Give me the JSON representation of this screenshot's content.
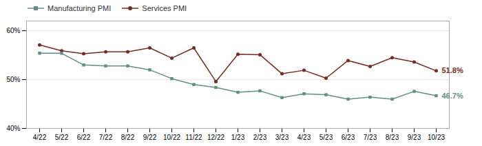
{
  "chart_data": {
    "type": "line",
    "categories": [
      "4/22",
      "5/22",
      "6/22",
      "7/22",
      "8/22",
      "9/22",
      "10/22",
      "11/22",
      "12/22",
      "1/23",
      "2/23",
      "3/23",
      "4/23",
      "5/23",
      "6/23",
      "7/23",
      "8/23",
      "9/23",
      "10/23"
    ],
    "series": [
      {
        "name": "Manufacturing PMI",
        "color": "#5f8f8a",
        "marker": "square",
        "values": [
          55.4,
          55.4,
          53.0,
          52.8,
          52.8,
          52.0,
          50.2,
          49.0,
          48.4,
          47.4,
          47.7,
          46.3,
          47.1,
          46.9,
          46.0,
          46.4,
          46.0,
          47.6,
          46.7
        ]
      },
      {
        "name": "Services PMI",
        "color": "#7b2a1e",
        "marker": "circle",
        "values": [
          57.1,
          55.9,
          55.3,
          55.7,
          55.7,
          56.5,
          54.4,
          56.5,
          49.6,
          55.2,
          55.1,
          51.2,
          51.9,
          50.3,
          53.9,
          52.7,
          54.5,
          53.6,
          51.8
        ]
      }
    ],
    "annotations": [
      {
        "text": "51.8%",
        "series": "Services PMI"
      },
      {
        "text": "46.7%",
        "series": "Manufacturing PMI"
      }
    ],
    "ylim": [
      40,
      62
    ],
    "yticks": [
      {
        "value": 40,
        "label": "40%"
      },
      {
        "value": 50,
        "label": "50%"
      },
      {
        "value": 60,
        "label": "60%"
      }
    ],
    "grid": true,
    "legend": "top left"
  }
}
